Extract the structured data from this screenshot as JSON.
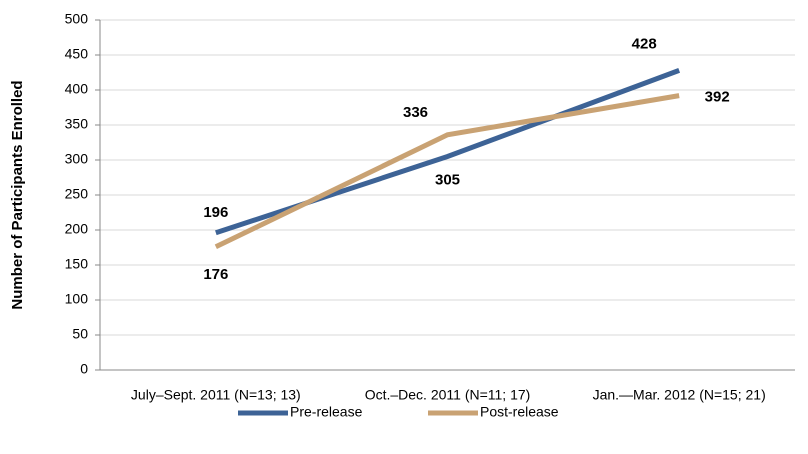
{
  "chart_data": {
    "type": "line",
    "ylabel": "Number of Participants Enrolled",
    "categories": [
      "July–Sept. 2011 (N=13; 13)",
      "Oct.–Dec. 2011 (N=11; 17)",
      "Jan.—Mar. 2012 (N=15; 21)"
    ],
    "series": [
      {
        "name": "Pre-release",
        "color": "#3d6396",
        "values": [
          196,
          305,
          428
        ]
      },
      {
        "name": "Post-release",
        "color": "#c9a273",
        "values": [
          176,
          336,
          392
        ]
      }
    ],
    "ylim": [
      0,
      500
    ],
    "yticks": [
      0,
      50,
      100,
      150,
      200,
      250,
      300,
      350,
      400,
      450,
      500
    ],
    "grid": true,
    "legend": "bottom"
  }
}
